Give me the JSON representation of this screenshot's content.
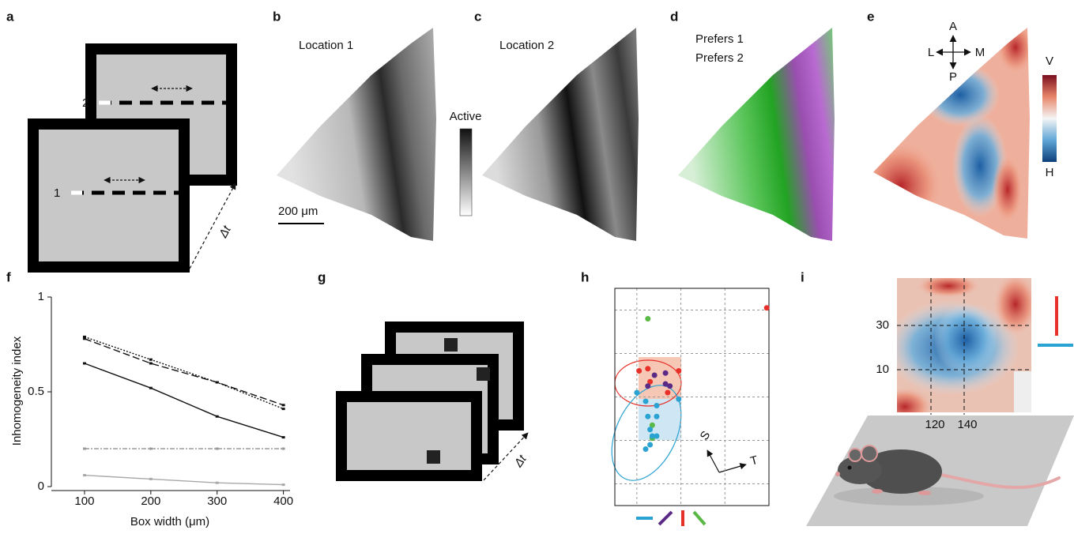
{
  "panel_labels": [
    "a",
    "b",
    "c",
    "d",
    "e",
    "f",
    "g",
    "h",
    "i"
  ],
  "a": {
    "screen_labels": [
      "1",
      "2"
    ],
    "interval": "Δt"
  },
  "b": {
    "title": "Location 1",
    "scale_bar": "200 μm"
  },
  "c": {
    "title": "Location 2"
  },
  "active_colorbar": "Active",
  "d": {
    "legend": [
      {
        "name": "Prefers 1",
        "color": "#b21fb0"
      },
      {
        "name": "Prefers 2",
        "color": "#2ca02c"
      }
    ]
  },
  "e": {
    "compass": [
      "A",
      "L",
      "M",
      "P"
    ],
    "colorbar": [
      "V",
      "H"
    ]
  },
  "g": {
    "interval": "Δt"
  },
  "h": {
    "axes": [
      "S",
      "T"
    ]
  },
  "i": {
    "yticks": [
      30,
      10
    ],
    "xticks": [
      120,
      140
    ]
  },
  "chart_data": [
    {
      "type": "line",
      "xlabel": "Box width (μm)",
      "ylabel": "Inhomogeneity index",
      "x": [
        100,
        200,
        300,
        400
      ],
      "xlim": [
        50,
        410
      ],
      "xticks": [
        100,
        200,
        300,
        400
      ],
      "ylim": [
        0,
        1
      ],
      "yticks": [
        0,
        0.5,
        1
      ],
      "series": [
        {
          "color": "#111111",
          "stroke_dash": "2,2",
          "values": [
            0.79,
            0.67,
            0.55,
            0.41
          ]
        },
        {
          "color": "#111111",
          "stroke_dash": "9,4",
          "values": [
            0.78,
            0.65,
            0.55,
            0.43
          ]
        },
        {
          "color": "#111111",
          "values": [
            0.65,
            0.52,
            0.37,
            0.26
          ]
        },
        {
          "color": "#9a9a9a",
          "stroke_dash": "6,2,2,2",
          "values": [
            0.2,
            0.2,
            0.2,
            0.2
          ]
        },
        {
          "color": "#a8a8a8",
          "values": [
            0.06,
            0.04,
            0.02,
            0.01
          ]
        }
      ]
    },
    {
      "type": "scatter",
      "xlim": [
        0,
        3.5
      ],
      "ylim": [
        0,
        5
      ],
      "xgrid": [
        0.5,
        1.5,
        2.5
      ],
      "ygrid": [
        0.5,
        1.5,
        2.5,
        3.5,
        4.5
      ],
      "series": [
        {
          "color": "#e8302a",
          "x": [
            3.45,
            0.55,
            0.75,
            0.8,
            1.45,
            1.2
          ],
          "values": [
            4.55,
            3.1,
            3.15,
            2.85,
            3.1,
            2.6
          ]
        },
        {
          "color": "#5b2a86",
          "x": [
            0.9,
            1.15,
            1.15,
            0.75,
            1.25
          ],
          "values": [
            3.0,
            3.05,
            2.8,
            2.75,
            2.75
          ]
        },
        {
          "color": "#5ab946",
          "x": [
            0.75,
            0.85,
            0.85
          ],
          "values": [
            4.3,
            1.85,
            1.55
          ]
        },
        {
          "color": "#2aa3d2",
          "x": [
            1.45,
            0.5,
            0.7,
            0.95,
            0.95,
            0.75,
            0.8,
            0.85,
            0.95,
            0.8,
            0.7
          ],
          "values": [
            2.45,
            2.6,
            2.4,
            2.3,
            2.05,
            2.05,
            1.75,
            1.6,
            1.6,
            1.4,
            1.3
          ]
        }
      ]
    }
  ]
}
